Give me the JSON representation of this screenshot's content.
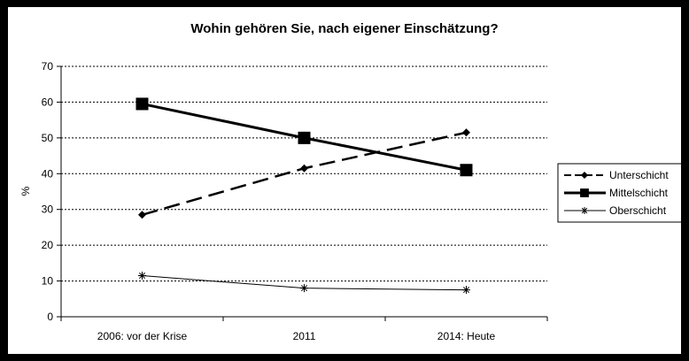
{
  "chart_data": {
    "type": "line",
    "title": "Wohin gehören Sie, nach eigener Einschätzung?",
    "xlabel": "",
    "ylabel": "%",
    "categories": [
      "2006: vor der Krise",
      "2011",
      "2014: Heute"
    ],
    "ylim": [
      0,
      70
    ],
    "yticks": [
      0,
      10,
      20,
      30,
      40,
      50,
      60,
      70
    ],
    "grid": true,
    "legend_position": "right",
    "series": [
      {
        "name": "Unterschicht",
        "values": [
          28.5,
          41.5,
          51.5
        ],
        "color": "#000000",
        "line": "dashed",
        "marker": "diamond"
      },
      {
        "name": "Mittelschicht",
        "values": [
          59.5,
          50,
          41
        ],
        "color": "#000000",
        "line": "solid-thick",
        "marker": "square"
      },
      {
        "name": "Oberschicht",
        "values": [
          11.5,
          8,
          7.5
        ],
        "color": "#000000",
        "line": "solid-thin",
        "marker": "asterisk"
      }
    ]
  }
}
